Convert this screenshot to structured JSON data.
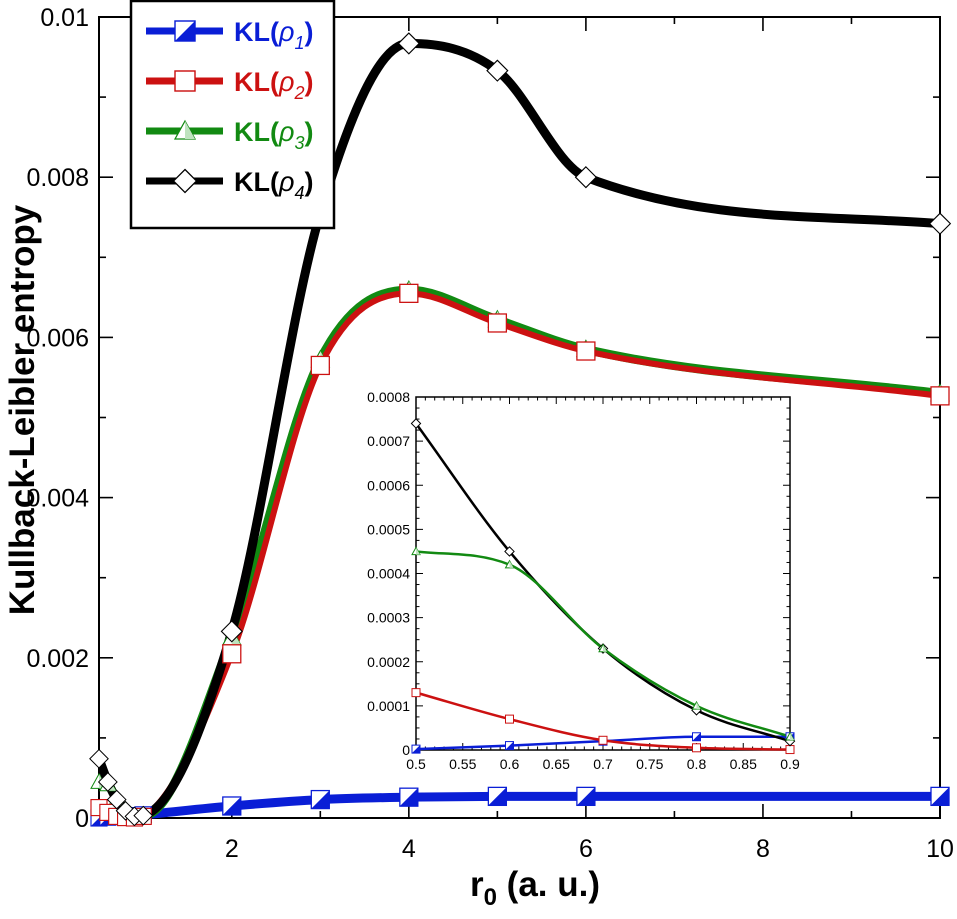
{
  "chart_data": [
    {
      "type": "line",
      "name": "main",
      "xlabel": "r",
      "xlabel_sub": "0",
      "xlabel_units": " (a. u.)",
      "ylabel": "Kullback-Leibler entropy",
      "xlim": [
        0.5,
        10
      ],
      "ylim": [
        0,
        0.01
      ],
      "xticks": [
        2,
        4,
        6,
        8,
        10
      ],
      "yticks": [
        0,
        0.002,
        0.004,
        0.006,
        0.008,
        0.01
      ],
      "xtick_labels": [
        "2",
        "4",
        "6",
        "8",
        "10"
      ],
      "ytick_labels": [
        "0",
        "0.002",
        "0.004",
        "0.006",
        "0.008",
        "0.01"
      ],
      "legend_position": "top-left",
      "series": [
        {
          "name": "KL(ρ1)",
          "label_base": "KL(",
          "label_rho": "ρ",
          "label_sub": "1",
          "label_end": ")",
          "color": "#0a1ed6",
          "marker": "half-square",
          "x": [
            0.5,
            0.6,
            0.7,
            0.8,
            0.9,
            1,
            2,
            3,
            4,
            5,
            6,
            10
          ],
          "y": [
            0.0,
            1e-05,
            2e-05,
            3e-05,
            3e-05,
            4e-05,
            0.00015,
            0.00023,
            0.00026,
            0.00027,
            0.00027,
            0.00027
          ]
        },
        {
          "name": "KL(ρ2)",
          "label_base": "KL(",
          "label_rho": "ρ",
          "label_sub": "2",
          "label_end": ")",
          "color": "#cc1111",
          "marker": "square",
          "x": [
            0.5,
            0.6,
            0.7,
            0.8,
            0.9,
            1,
            2,
            3,
            4,
            5,
            6,
            10
          ],
          "y": [
            0.00013,
            7e-05,
            2e-05,
            5e-06,
            0.0,
            2e-05,
            0.00205,
            0.00565,
            0.00655,
            0.00618,
            0.00583,
            0.00527
          ]
        },
        {
          "name": "KL(ρ3)",
          "label_base": "KL(",
          "label_rho": "ρ",
          "label_sub": "3",
          "label_end": ")",
          "color": "#128a12",
          "marker": "half-triangle",
          "x": [
            0.5,
            0.6,
            0.7,
            0.8,
            0.9,
            1,
            2,
            3,
            4,
            5,
            6,
            10
          ],
          "y": [
            0.00045,
            0.00042,
            0.00023,
            0.0001,
            3e-05,
            3e-05,
            0.00225,
            0.00572,
            0.00659,
            0.00622,
            0.00585,
            0.0053
          ]
        },
        {
          "name": "KL(ρ4)",
          "label_base": "KL(",
          "label_rho": "ρ",
          "label_sub": "4",
          "label_end": ")",
          "color": "#000000",
          "marker": "diamond",
          "x": [
            0.5,
            0.6,
            0.7,
            0.8,
            0.9,
            1,
            2,
            3,
            4,
            5,
            6,
            10
          ],
          "y": [
            0.00074,
            0.00045,
            0.00023,
            9e-05,
            2e-05,
            3e-05,
            0.00233,
            0.00755,
            0.00967,
            0.00933,
            0.008,
            0.00742
          ]
        }
      ]
    },
    {
      "type": "line",
      "name": "inset",
      "xlim": [
        0.5,
        0.9
      ],
      "ylim": [
        0,
        0.0008
      ],
      "xticks": [
        0.5,
        0.55,
        0.6,
        0.65,
        0.7,
        0.75,
        0.8,
        0.85,
        0.9
      ],
      "yticks": [
        0,
        0.0001,
        0.0002,
        0.0003,
        0.0004,
        0.0005,
        0.0006,
        0.0007,
        0.0008
      ],
      "xtick_labels": [
        "0.5",
        "0.55",
        "0.6",
        "0.65",
        "0.7",
        "0.75",
        "0.8",
        "0.85",
        "0.9"
      ],
      "ytick_labels": [
        "0",
        "0.0001",
        "0.0002",
        "0.0003",
        "0.0004",
        "0.0005",
        "0.0006",
        "0.0007",
        "0.0008"
      ],
      "series": [
        {
          "name": "KL(ρ1)",
          "color": "#0a1ed6",
          "marker": "half-square",
          "x": [
            0.5,
            0.6,
            0.7,
            0.8,
            0.9
          ],
          "y": [
            2e-06,
            1e-05,
            2e-05,
            3e-05,
            3e-05
          ]
        },
        {
          "name": "KL(ρ2)",
          "color": "#cc1111",
          "marker": "square",
          "x": [
            0.5,
            0.6,
            0.7,
            0.8,
            0.9
          ],
          "y": [
            0.00013,
            7e-05,
            2.2e-05,
            5e-06,
            1e-06
          ]
        },
        {
          "name": "KL(ρ3)",
          "color": "#128a12",
          "marker": "half-triangle",
          "x": [
            0.5,
            0.6,
            0.7,
            0.8,
            0.9
          ],
          "y": [
            0.00045,
            0.00042,
            0.00023,
            0.0001,
            3e-05
          ]
        },
        {
          "name": "KL(ρ4)",
          "color": "#000000",
          "marker": "diamond",
          "x": [
            0.5,
            0.6,
            0.7,
            0.8,
            0.9
          ],
          "y": [
            0.00074,
            0.00045,
            0.00023,
            9e-05,
            2e-05
          ]
        }
      ]
    }
  ]
}
